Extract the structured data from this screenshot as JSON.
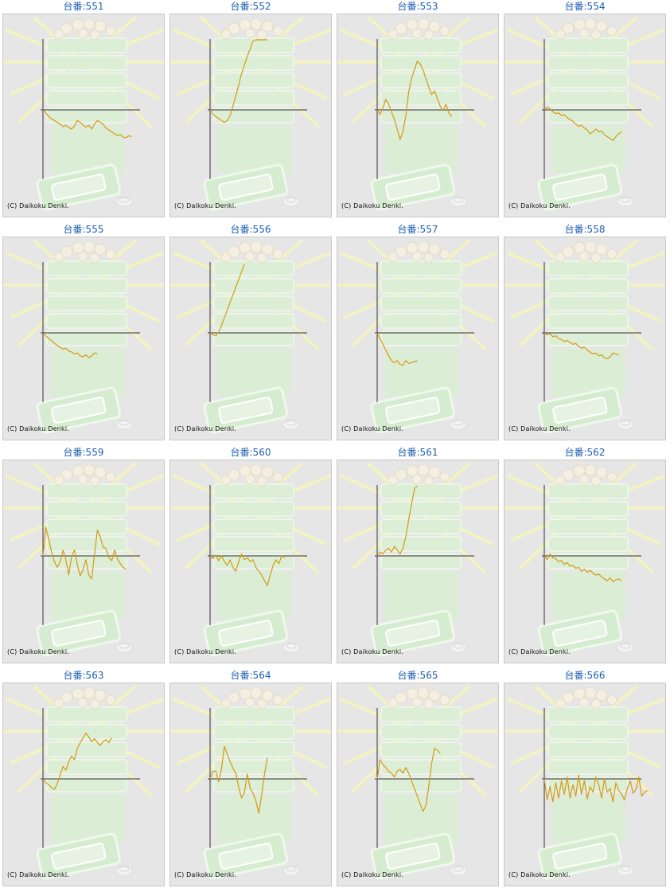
{
  "copyright": "(C) Daikoku Denki.",
  "line_color": "#d49a12",
  "axis_color": "#333333",
  "chart_data": [
    {
      "type": "line",
      "title": "台番:551",
      "values": [
        0,
        -30,
        -70,
        -95,
        -110,
        -130,
        -150,
        -175,
        -160,
        -185,
        -200,
        -170,
        -110,
        -130,
        -160,
        -180,
        -160,
        -200,
        -150,
        -110,
        -130,
        -150,
        -190,
        -210,
        -230,
        -250,
        -270,
        -260,
        -285,
        -290,
        -270,
        -280
      ]
    },
    {
      "type": "line",
      "title": "台番:552",
      "values": [
        0,
        -40,
        -70,
        -90,
        -110,
        -130,
        -110,
        -60,
        40,
        150,
        260,
        380,
        470,
        560,
        640,
        720,
        780,
        840,
        900,
        940,
        1000
      ]
    },
    {
      "type": "line",
      "title": "台番:553",
      "values": [
        0,
        -50,
        20,
        110,
        60,
        -20,
        -100,
        -200,
        -310,
        -230,
        -60,
        190,
        330,
        420,
        510,
        480,
        420,
        330,
        240,
        160,
        200,
        120,
        40,
        -10,
        60,
        -30,
        -70
      ]
    },
    {
      "type": "line",
      "title": "台番:554",
      "values": [
        0,
        30,
        10,
        -20,
        -40,
        -30,
        -60,
        -50,
        -80,
        -100,
        -120,
        -150,
        -170,
        -160,
        -190,
        -210,
        -250,
        -230,
        -200,
        -230,
        -220,
        -260,
        -280,
        -300,
        -320,
        -280,
        -250,
        -230
      ]
    },
    {
      "type": "line",
      "title": "台番:555",
      "values": [
        0,
        -30,
        -60,
        -80,
        -110,
        -130,
        -150,
        -170,
        -160,
        -190,
        -200,
        -220,
        -210,
        -240,
        -250,
        -230,
        -260,
        -240,
        -210,
        -220
      ]
    },
    {
      "type": "line",
      "title": "台番:556",
      "values": [
        0,
        -20,
        -30,
        10,
        80,
        160,
        240,
        320,
        400,
        480,
        560,
        640,
        720
      ]
    },
    {
      "type": "line",
      "title": "台番:557",
      "values": [
        0,
        -60,
        -120,
        -180,
        -240,
        -290,
        -310,
        -290,
        -330,
        -340,
        -290,
        -320,
        -310,
        -300,
        -290
      ]
    },
    {
      "type": "line",
      "title": "台番:558",
      "values": [
        0,
        -20,
        -10,
        -40,
        -30,
        -60,
        -70,
        -90,
        -80,
        -100,
        -120,
        -110,
        -140,
        -160,
        -150,
        -180,
        -200,
        -220,
        -210,
        -240,
        -230,
        -260,
        -270,
        -250,
        -210,
        -220,
        -230
      ]
    },
    {
      "type": "line",
      "title": "台番:559",
      "values": [
        0,
        300,
        180,
        40,
        -60,
        -120,
        -60,
        60,
        -40,
        -200,
        0,
        60,
        -90,
        -210,
        -140,
        -40,
        -200,
        -240,
        20,
        270,
        200,
        90,
        80,
        -20,
        -50,
        60,
        -30,
        -80,
        -120,
        -140
      ]
    },
    {
      "type": "line",
      "title": "台番:560",
      "values": [
        0,
        -30,
        10,
        -50,
        0,
        -60,
        -100,
        -40,
        -120,
        -160,
        -60,
        20,
        -40,
        -20,
        -60,
        -40,
        -120,
        -160,
        -200,
        -260,
        -310,
        -200,
        -100,
        -40,
        -80,
        0,
        -20
      ]
    },
    {
      "type": "line",
      "title": "台番:561",
      "values": [
        0,
        40,
        20,
        60,
        80,
        40,
        100,
        60,
        20,
        80,
        200,
        380,
        540,
        700,
        880
      ]
    },
    {
      "type": "line",
      "title": "台番:562",
      "values": [
        0,
        -40,
        20,
        -20,
        -30,
        -60,
        -50,
        -90,
        -70,
        -110,
        -100,
        -130,
        -120,
        -160,
        -140,
        -170,
        -150,
        -180,
        -200,
        -190,
        -220,
        -240,
        -260,
        -230,
        -270,
        -250,
        -240,
        -260
      ]
    },
    {
      "type": "line",
      "title": "台番:563",
      "values": [
        0,
        -40,
        -60,
        -90,
        -110,
        -50,
        40,
        130,
        90,
        180,
        240,
        200,
        320,
        380,
        430,
        480,
        440,
        390,
        420,
        380,
        350,
        390,
        410,
        380,
        430
      ]
    },
    {
      "type": "line",
      "title": "台番:564",
      "values": [
        0,
        80,
        80,
        -30,
        110,
        340,
        260,
        180,
        110,
        60,
        -90,
        -200,
        -140,
        50,
        -100,
        -150,
        -230,
        -360,
        -170,
        50,
        220
      ]
    },
    {
      "type": "line",
      "title": "台番:565",
      "values": [
        0,
        200,
        150,
        120,
        80,
        60,
        20,
        80,
        100,
        60,
        120,
        60,
        -20,
        -100,
        -180,
        -260,
        -340,
        -280,
        -80,
        160,
        320,
        300,
        270
      ]
    },
    {
      "type": "line",
      "title": "台番:566",
      "values": [
        0,
        -220,
        -80,
        -240,
        -40,
        -200,
        -20,
        -160,
        20,
        -200,
        -60,
        -180,
        40,
        -160,
        -20,
        -210,
        -80,
        -140,
        20,
        -60,
        -200,
        0,
        -140,
        -100,
        -240,
        -40,
        -120,
        -160,
        -220,
        -100,
        -20,
        -150,
        -110,
        20,
        -180,
        -140,
        -120
      ]
    }
  ]
}
